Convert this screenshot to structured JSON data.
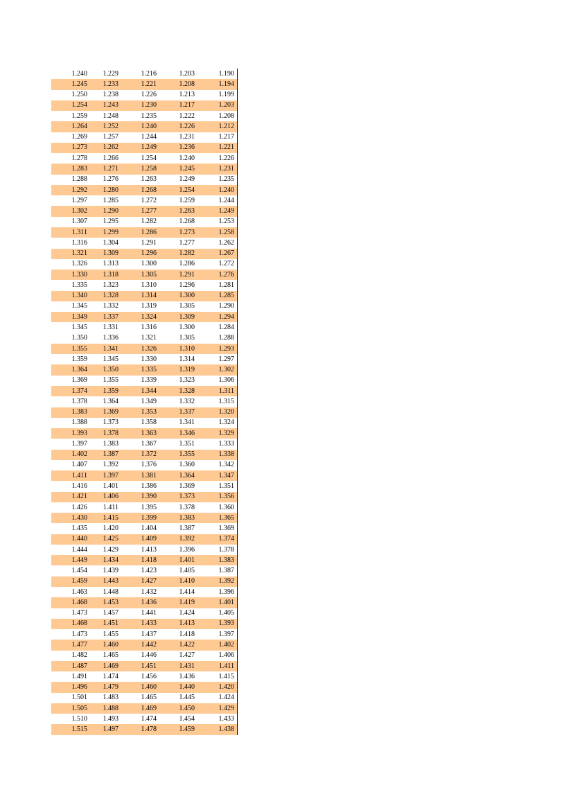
{
  "table": {
    "highlight_color": "#ffc994",
    "rows": [
      {
        "highlight": false,
        "values": [
          "1.240",
          "1.229",
          "1.216",
          "1.203",
          "1.190"
        ]
      },
      {
        "highlight": true,
        "values": [
          "1.245",
          "1.233",
          "1.221",
          "1.208",
          "1.194"
        ]
      },
      {
        "highlight": false,
        "values": [
          "1.250",
          "1.238",
          "1.226",
          "1.213",
          "1.199"
        ]
      },
      {
        "highlight": true,
        "values": [
          "1.254",
          "1.243",
          "1.230",
          "1.217",
          "1.203"
        ]
      },
      {
        "highlight": false,
        "values": [
          "1.259",
          "1.248",
          "1.235",
          "1.222",
          "1.208"
        ]
      },
      {
        "highlight": true,
        "values": [
          "1.264",
          "1.252",
          "1.240",
          "1.226",
          "1.212"
        ]
      },
      {
        "highlight": false,
        "values": [
          "1.269",
          "1.257",
          "1.244",
          "1.231",
          "1.217"
        ]
      },
      {
        "highlight": true,
        "values": [
          "1.273",
          "1.262",
          "1.249",
          "1.236",
          "1.221"
        ]
      },
      {
        "highlight": false,
        "values": [
          "1.278",
          "1.266",
          "1.254",
          "1.240",
          "1.226"
        ]
      },
      {
        "highlight": true,
        "values": [
          "1.283",
          "1.271",
          "1.258",
          "1.245",
          "1.231"
        ]
      },
      {
        "highlight": false,
        "values": [
          "1.288",
          "1.276",
          "1.263",
          "1.249",
          "1.235"
        ]
      },
      {
        "highlight": true,
        "values": [
          "1.292",
          "1.280",
          "1.268",
          "1.254",
          "1.240"
        ]
      },
      {
        "highlight": false,
        "values": [
          "1.297",
          "1.285",
          "1.272",
          "1.259",
          "1.244"
        ]
      },
      {
        "highlight": true,
        "values": [
          "1.302",
          "1.290",
          "1.277",
          "1.263",
          "1.249"
        ]
      },
      {
        "highlight": false,
        "values": [
          "1.307",
          "1.295",
          "1.282",
          "1.268",
          "1.253"
        ]
      },
      {
        "highlight": true,
        "values": [
          "1.311",
          "1.299",
          "1.286",
          "1.273",
          "1.258"
        ]
      },
      {
        "highlight": false,
        "values": [
          "1.316",
          "1.304",
          "1.291",
          "1.277",
          "1.262"
        ]
      },
      {
        "highlight": true,
        "values": [
          "1.321",
          "1.309",
          "1.296",
          "1.282",
          "1.267"
        ]
      },
      {
        "highlight": false,
        "values": [
          "1.326",
          "1.313",
          "1.300",
          "1.286",
          "1.272"
        ]
      },
      {
        "highlight": true,
        "values": [
          "1.330",
          "1.318",
          "1.305",
          "1.291",
          "1.276"
        ]
      },
      {
        "highlight": false,
        "values": [
          "1.335",
          "1.323",
          "1.310",
          "1.296",
          "1.281"
        ]
      },
      {
        "highlight": true,
        "values": [
          "1.340",
          "1.328",
          "1.314",
          "1.300",
          "1.285"
        ]
      },
      {
        "highlight": false,
        "values": [
          "1.345",
          "1.332",
          "1.319",
          "1.305",
          "1.290"
        ]
      },
      {
        "highlight": true,
        "values": [
          "1.349",
          "1.337",
          "1.324",
          "1.309",
          "1.294"
        ]
      },
      {
        "highlight": false,
        "values": [
          "1.345",
          "1.331",
          "1.316",
          "1.300",
          "1.284"
        ]
      },
      {
        "highlight": false,
        "values": [
          "1.350",
          "1.336",
          "1.321",
          "1.305",
          "1.288"
        ]
      },
      {
        "highlight": true,
        "values": [
          "1.355",
          "1.341",
          "1.326",
          "1.310",
          "1.293"
        ]
      },
      {
        "highlight": false,
        "values": [
          "1.359",
          "1.345",
          "1.330",
          "1.314",
          "1.297"
        ]
      },
      {
        "highlight": true,
        "values": [
          "1.364",
          "1.350",
          "1.335",
          "1.319",
          "1.302"
        ]
      },
      {
        "highlight": false,
        "values": [
          "1.369",
          "1.355",
          "1.339",
          "1.323",
          "1.306"
        ]
      },
      {
        "highlight": true,
        "values": [
          "1.374",
          "1.359",
          "1.344",
          "1.328",
          "1.311"
        ]
      },
      {
        "highlight": false,
        "values": [
          "1.378",
          "1.364",
          "1.349",
          "1.332",
          "1.315"
        ]
      },
      {
        "highlight": true,
        "values": [
          "1.383",
          "1.369",
          "1.353",
          "1.337",
          "1.320"
        ]
      },
      {
        "highlight": false,
        "values": [
          "1.388",
          "1.373",
          "1.358",
          "1.341",
          "1.324"
        ]
      },
      {
        "highlight": true,
        "values": [
          "1.393",
          "1.378",
          "1.363",
          "1.346",
          "1.329"
        ]
      },
      {
        "highlight": false,
        "values": [
          "1.397",
          "1.383",
          "1.367",
          "1.351",
          "1.333"
        ]
      },
      {
        "highlight": true,
        "values": [
          "1.402",
          "1.387",
          "1.372",
          "1.355",
          "1.338"
        ]
      },
      {
        "highlight": false,
        "values": [
          "1.407",
          "1.392",
          "1.376",
          "1.360",
          "1.342"
        ]
      },
      {
        "highlight": true,
        "values": [
          "1.411",
          "1.397",
          "1.381",
          "1.364",
          "1.347"
        ]
      },
      {
        "highlight": false,
        "values": [
          "1.416",
          "1.401",
          "1.386",
          "1.369",
          "1.351"
        ]
      },
      {
        "highlight": true,
        "values": [
          "1.421",
          "1.406",
          "1.390",
          "1.373",
          "1.356"
        ]
      },
      {
        "highlight": false,
        "values": [
          "1.426",
          "1.411",
          "1.395",
          "1.378",
          "1.360"
        ]
      },
      {
        "highlight": true,
        "values": [
          "1.430",
          "1.415",
          "1.399",
          "1.383",
          "1.365"
        ]
      },
      {
        "highlight": false,
        "values": [
          "1.435",
          "1.420",
          "1.404",
          "1.387",
          "1.369"
        ]
      },
      {
        "highlight": true,
        "values": [
          "1.440",
          "1.425",
          "1.409",
          "1.392",
          "1.374"
        ]
      },
      {
        "highlight": false,
        "values": [
          "1.444",
          "1.429",
          "1.413",
          "1.396",
          "1.378"
        ]
      },
      {
        "highlight": true,
        "values": [
          "1.449",
          "1.434",
          "1.418",
          "1.401",
          "1.383"
        ]
      },
      {
        "highlight": false,
        "values": [
          "1.454",
          "1.439",
          "1.423",
          "1.405",
          "1.387"
        ]
      },
      {
        "highlight": true,
        "values": [
          "1.459",
          "1.443",
          "1.427",
          "1.410",
          "1.392"
        ]
      },
      {
        "highlight": false,
        "values": [
          "1.463",
          "1.448",
          "1.432",
          "1.414",
          "1.396"
        ]
      },
      {
        "highlight": true,
        "values": [
          "1.468",
          "1.453",
          "1.436",
          "1.419",
          "1.401"
        ]
      },
      {
        "highlight": false,
        "values": [
          "1.473",
          "1.457",
          "1.441",
          "1.424",
          "1.405"
        ]
      },
      {
        "highlight": true,
        "values": [
          "1.468",
          "1.451",
          "1.433",
          "1.413",
          "1.393"
        ]
      },
      {
        "highlight": false,
        "values": [
          "1.473",
          "1.455",
          "1.437",
          "1.418",
          "1.397"
        ]
      },
      {
        "highlight": true,
        "values": [
          "1.477",
          "1.460",
          "1.442",
          "1.422",
          "1.402"
        ]
      },
      {
        "highlight": false,
        "values": [
          "1.482",
          "1.465",
          "1.446",
          "1.427",
          "1.406"
        ]
      },
      {
        "highlight": true,
        "values": [
          "1.487",
          "1.469",
          "1.451",
          "1.431",
          "1.411"
        ]
      },
      {
        "highlight": false,
        "values": [
          "1.491",
          "1.474",
          "1.456",
          "1.436",
          "1.415"
        ]
      },
      {
        "highlight": true,
        "values": [
          "1.496",
          "1.479",
          "1.460",
          "1.440",
          "1.420"
        ]
      },
      {
        "highlight": false,
        "values": [
          "1.501",
          "1.483",
          "1.465",
          "1.445",
          "1.424"
        ]
      },
      {
        "highlight": true,
        "values": [
          "1.505",
          "1.488",
          "1.469",
          "1.450",
          "1.429"
        ]
      },
      {
        "highlight": false,
        "values": [
          "1.510",
          "1.493",
          "1.474",
          "1.454",
          "1.433"
        ]
      },
      {
        "highlight": true,
        "values": [
          "1.515",
          "1.497",
          "1.478",
          "1.459",
          "1.438"
        ]
      }
    ]
  }
}
